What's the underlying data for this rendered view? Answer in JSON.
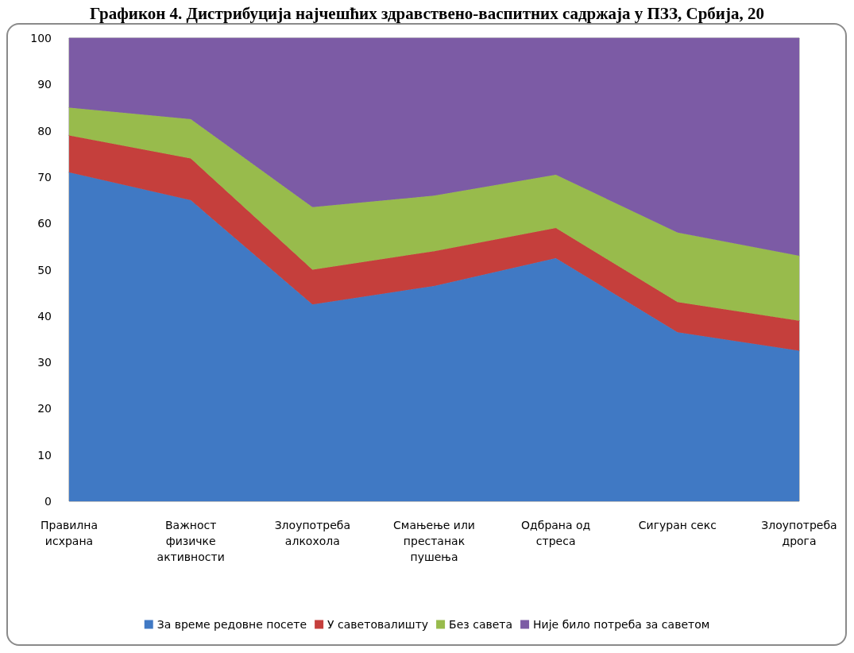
{
  "chart_data": {
    "type": "area",
    "title": "Графикон 4. Дистрибуција најчешћих здравствено-васпитних садржаја у ПЗЗ, Србија, 20",
    "categories": [
      "Правилна исхрана",
      "Важност физичке активности",
      "Злоупотреба алкохола",
      "Смањење или престанак пушења",
      "Одбрана од стреса",
      "Сигуран секс",
      "Злоупотреба дрога"
    ],
    "series": [
      {
        "name": "За време редовне посете",
        "color": "#4079c4",
        "values": [
          71,
          65,
          42.5,
          46.5,
          52.5,
          36.5,
          32.5
        ]
      },
      {
        "name": "У саветовалишту",
        "color": "#c53f3c",
        "values": [
          8,
          9,
          7.5,
          7.5,
          6.5,
          6.5,
          6.5
        ]
      },
      {
        "name": "Без савета",
        "color": "#98bb4c",
        "values": [
          6,
          8.5,
          13.5,
          12,
          11.5,
          15,
          14
        ]
      },
      {
        "name": "Није било потреба за саветом",
        "color": "#7c5ba5",
        "values": [
          15,
          17.5,
          36.5,
          34,
          29.5,
          42,
          47
        ]
      }
    ],
    "stacked": true,
    "ylim": [
      0,
      100
    ],
    "yticks": [
      0,
      10,
      20,
      30,
      40,
      50,
      60,
      70,
      80,
      90,
      100
    ],
    "grid": false,
    "legend": "bottom",
    "marker": "none"
  }
}
